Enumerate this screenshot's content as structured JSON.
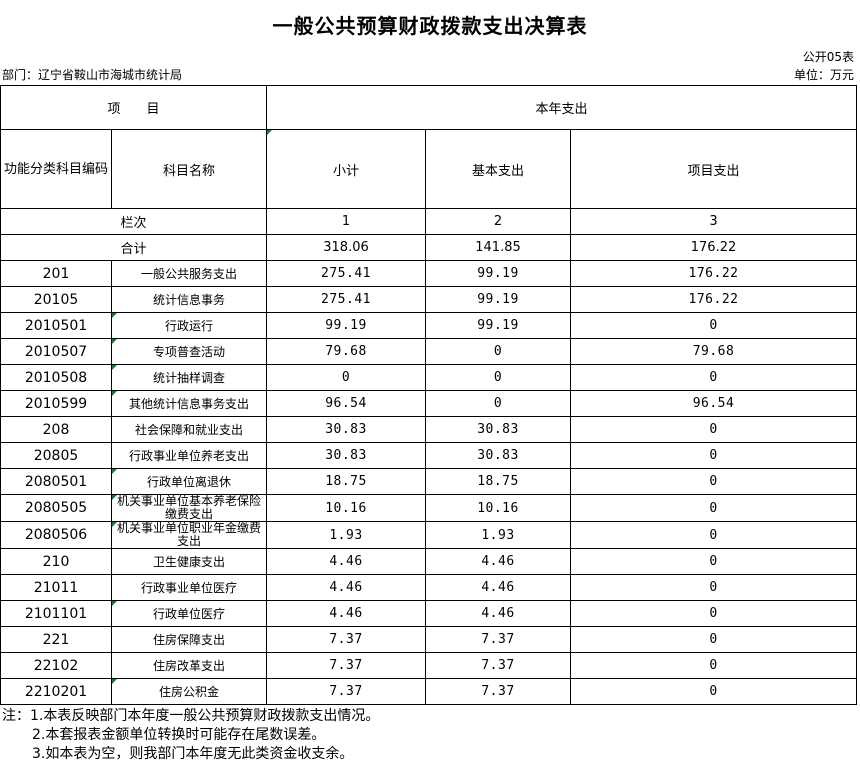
{
  "title": "一般公共预算财政拨款支出决算表",
  "form_code": "公开05表",
  "department": "部门：辽宁省鞍山市海城市统计局",
  "unit": "单位：万元",
  "header": {
    "item": "项　　目",
    "current_year": "本年支出",
    "func_code": "功能分类科目编码",
    "subject_name": "科目名称",
    "subtotal": "小计",
    "basic": "基本支出",
    "project": "项目支出"
  },
  "column_row": {
    "label": "栏次",
    "c1": "1",
    "c2": "2",
    "c3": "3"
  },
  "total_row": {
    "label": "合计",
    "subtotal": "318.06",
    "basic": "141.85",
    "project": "176.22"
  },
  "rows": [
    {
      "code": "201",
      "name": "一般公共服务支出",
      "subtotal": "275.41",
      "basic": "99.19",
      "project": "176.22"
    },
    {
      "code": "20105",
      "name": "统计信息事务",
      "subtotal": "275.41",
      "basic": "99.19",
      "project": "176.22"
    },
    {
      "code": "2010501",
      "name": "行政运行",
      "subtotal": "99.19",
      "basic": "99.19",
      "project": "0"
    },
    {
      "code": "2010507",
      "name": "专项普查活动",
      "subtotal": "79.68",
      "basic": "0",
      "project": "79.68"
    },
    {
      "code": "2010508",
      "name": "统计抽样调查",
      "subtotal": "0",
      "basic": "0",
      "project": "0"
    },
    {
      "code": "2010599",
      "name": "其他统计信息事务支出",
      "subtotal": "96.54",
      "basic": "0",
      "project": "96.54"
    },
    {
      "code": "208",
      "name": "社会保障和就业支出",
      "subtotal": "30.83",
      "basic": "30.83",
      "project": "0"
    },
    {
      "code": "20805",
      "name": "行政事业单位养老支出",
      "subtotal": "30.83",
      "basic": "30.83",
      "project": "0"
    },
    {
      "code": "2080501",
      "name": "行政单位离退休",
      "subtotal": "18.75",
      "basic": "18.75",
      "project": "0"
    },
    {
      "code": "2080505",
      "name": "机关事业单位基本养老保险缴费支出",
      "subtotal": "10.16",
      "basic": "10.16",
      "project": "0"
    },
    {
      "code": "2080506",
      "name": "机关事业单位职业年金缴费支出",
      "subtotal": "1.93",
      "basic": "1.93",
      "project": "0"
    },
    {
      "code": "210",
      "name": "卫生健康支出",
      "subtotal": "4.46",
      "basic": "4.46",
      "project": "0"
    },
    {
      "code": "21011",
      "name": "行政事业单位医疗",
      "subtotal": "4.46",
      "basic": "4.46",
      "project": "0"
    },
    {
      "code": "2101101",
      "name": "行政单位医疗",
      "subtotal": "4.46",
      "basic": "4.46",
      "project": "0"
    },
    {
      "code": "221",
      "name": "住房保障支出",
      "subtotal": "7.37",
      "basic": "7.37",
      "project": "0"
    },
    {
      "code": "22102",
      "name": "住房改革支出",
      "subtotal": "7.37",
      "basic": "7.37",
      "project": "0"
    },
    {
      "code": "2210201",
      "name": "住房公积金",
      "subtotal": "7.37",
      "basic": "7.37",
      "project": "0"
    }
  ],
  "notes": [
    "注：1.本表反映部门本年度一般公共预算财政拨款支出情况。",
    "2.本套报表金额单位转换时可能存在尾数误差。",
    "3.如本表为空，则我部门本年度无此类资金收支余。"
  ]
}
